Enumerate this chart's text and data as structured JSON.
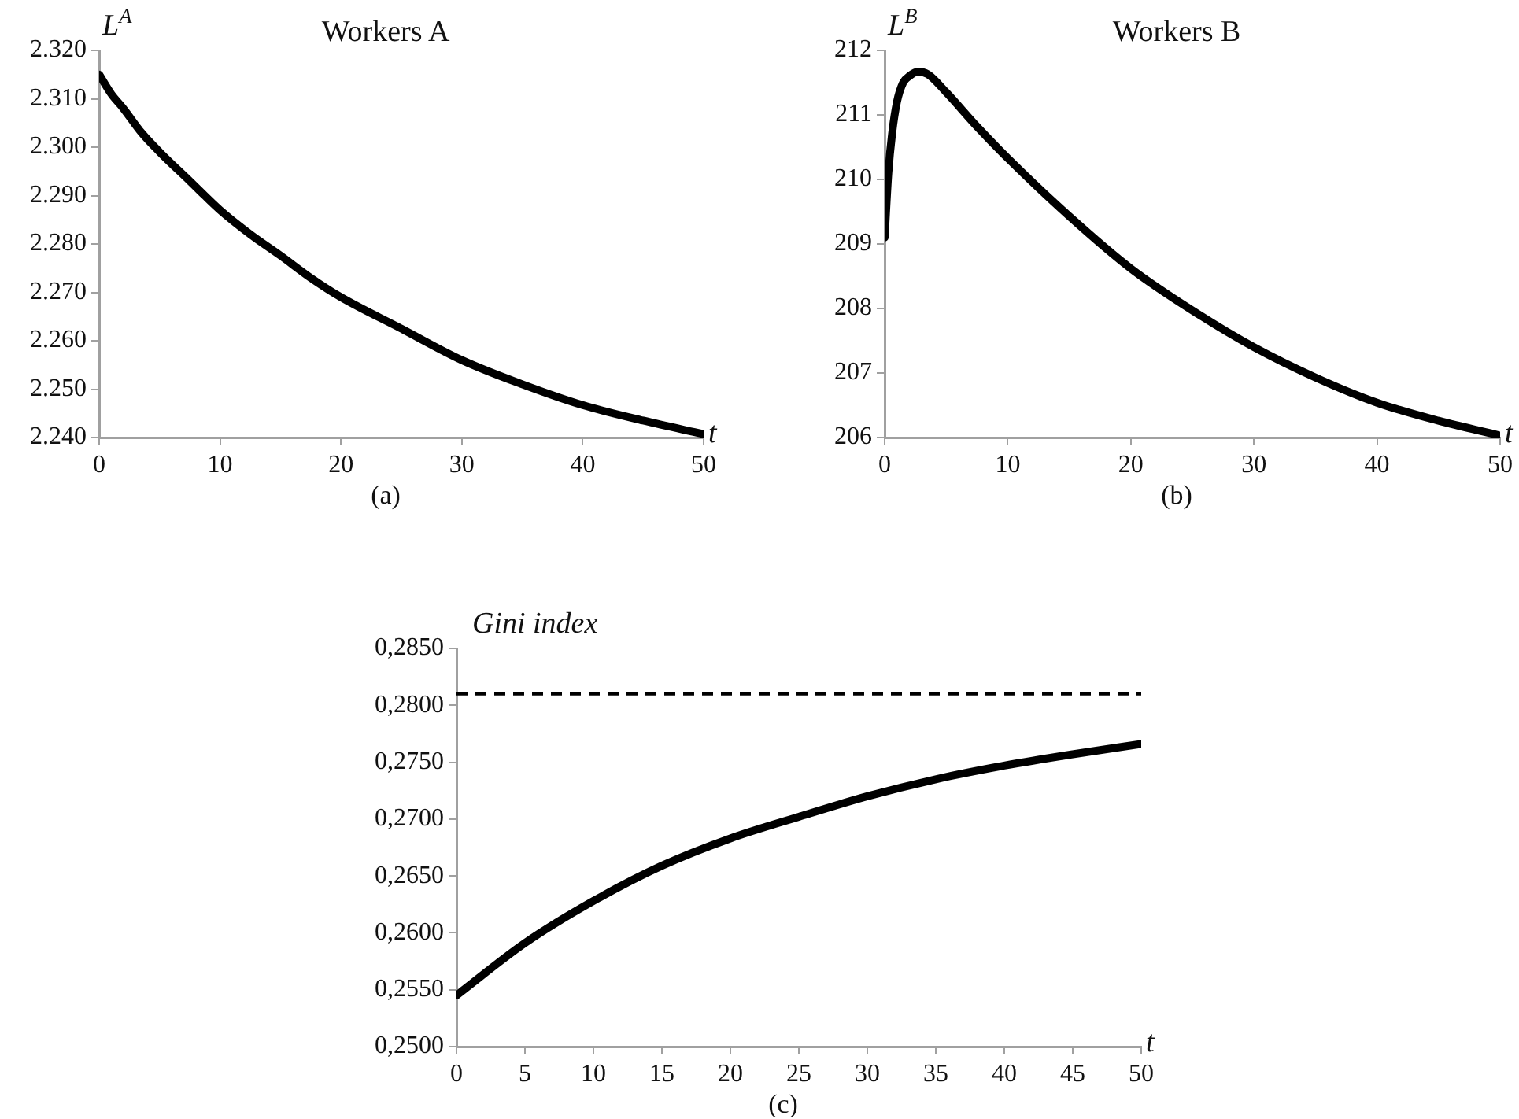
{
  "chart_data": [
    {
      "type": "line",
      "title": "Workers A",
      "ylabel": "L$^{A}$",
      "xlabel": "t",
      "annotations": [
        "(a)"
      ],
      "marker": "none",
      "legend": false,
      "series": [
        {
          "color": "#000000",
          "x": [
            0,
            1,
            2,
            3.5,
            5,
            7.5,
            10,
            12.5,
            15,
            17.5,
            20,
            25,
            30,
            35,
            40,
            45,
            50
          ],
          "values": [
            2315,
            2311,
            2308,
            2303,
            2299,
            2293,
            2287,
            2282,
            2277.6,
            2273,
            2269,
            2262.5,
            2256,
            2251,
            2246.7,
            2243.5,
            2240.7
          ]
        }
      ],
      "xlim": [
        0,
        50
      ],
      "xticks": [
        0,
        10,
        20,
        30,
        40,
        50
      ],
      "ylim": [
        2240,
        2320
      ],
      "yticks": [
        {
          "value": 2240,
          "label": "2.240"
        },
        {
          "value": 2250,
          "label": "2.250"
        },
        {
          "value": 2260,
          "label": "2.260"
        },
        {
          "value": 2270,
          "label": "2.270"
        },
        {
          "value": 2280,
          "label": "2.280"
        },
        {
          "value": 2290,
          "label": "2.290"
        },
        {
          "value": 2300,
          "label": "2.300"
        },
        {
          "value": 2310,
          "label": "2.310"
        },
        {
          "value": 2320,
          "label": "2.320"
        }
      ]
    },
    {
      "type": "line",
      "title": "Workers B",
      "ylabel": "L$^{B}$",
      "xlabel": "t",
      "annotations": [
        "(b)"
      ],
      "marker": "none",
      "legend": false,
      "series": [
        {
          "color": "#000000",
          "x": [
            0,
            0.3,
            0.6,
            1,
            1.5,
            2,
            2.7,
            3.5,
            5,
            7.5,
            10,
            15,
            20,
            25,
            30,
            35,
            40,
            45,
            50
          ],
          "values": [
            209.1,
            210.1,
            210.7,
            211.2,
            211.5,
            211.6,
            211.67,
            211.63,
            211.35,
            210.82,
            210.33,
            209.43,
            208.62,
            207.97,
            207.4,
            206.93,
            206.54,
            206.26,
            206.03
          ]
        }
      ],
      "xlim": [
        0,
        50
      ],
      "xticks": [
        0,
        10,
        20,
        30,
        40,
        50
      ],
      "ylim": [
        206,
        212
      ],
      "yticks": [
        206,
        207,
        208,
        209,
        210,
        211,
        212
      ]
    },
    {
      "type": "line",
      "ylabel": "Gini index",
      "xlabel": "t",
      "annotations": [
        "(c)"
      ],
      "marker": "none",
      "legend": false,
      "series": [
        {
          "color": "#000000",
          "x": [
            0,
            5,
            10,
            15,
            20,
            25,
            30,
            35,
            40,
            45,
            50
          ],
          "values": [
            0.2545,
            0.2591,
            0.2628,
            0.2659,
            0.2683,
            0.2702,
            0.272,
            0.2735,
            0.2747,
            0.2757,
            0.2766
          ]
        }
      ],
      "ref_lines": [
        {
          "axis": "y",
          "value": 0.281,
          "color": "#000000",
          "line_style": "dashed"
        }
      ],
      "xlim": [
        0,
        50
      ],
      "xticks": [
        0,
        5,
        10,
        15,
        20,
        25,
        30,
        35,
        40,
        45,
        50
      ],
      "ylim": [
        0.25,
        0.285
      ],
      "yticks": [
        {
          "value": 0.25,
          "label": "0,2500"
        },
        {
          "value": 0.255,
          "label": "0,2550"
        },
        {
          "value": 0.26,
          "label": "0,2600"
        },
        {
          "value": 0.265,
          "label": "0,2650"
        },
        {
          "value": 0.27,
          "label": "0,2700"
        },
        {
          "value": 0.275,
          "label": "0,2750"
        },
        {
          "value": 0.28,
          "label": "0,2800"
        },
        {
          "value": 0.285,
          "label": "0,2850"
        }
      ]
    }
  ]
}
